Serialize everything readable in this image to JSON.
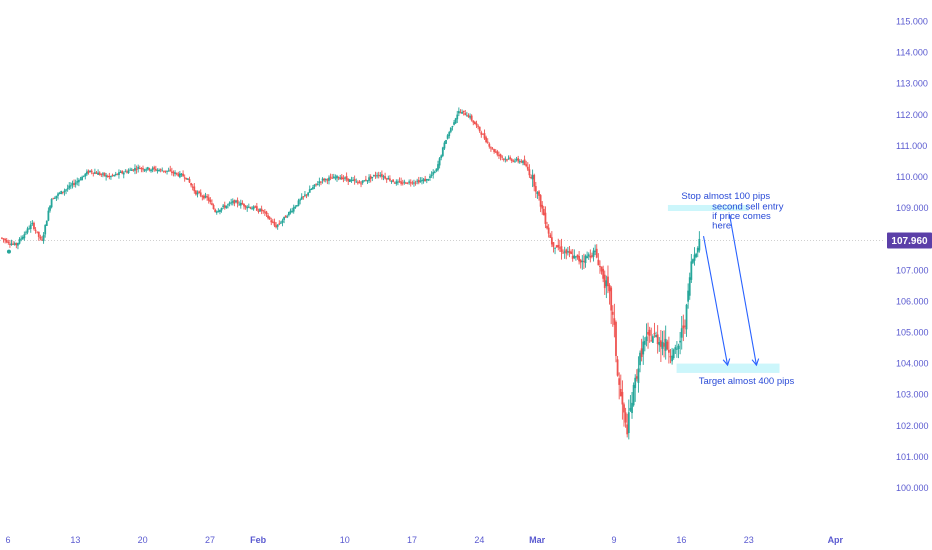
{
  "chart_data": {
    "type": "candlestick",
    "title": "",
    "current_price": {
      "value": 107.96,
      "label": "107.960"
    },
    "ylim": [
      99.4,
      115.8
    ],
    "y_ticks": [
      "100.000",
      "101.000",
      "102.000",
      "103.000",
      "104.000",
      "105.000",
      "106.000",
      "107.000",
      "108.000",
      "109.000",
      "110.000",
      "111.000",
      "112.000",
      "113.000",
      "114.000",
      "115.000"
    ],
    "x_ticks": [
      {
        "label": "6",
        "day": 0,
        "bold": false
      },
      {
        "label": "13",
        "day": 7,
        "bold": false
      },
      {
        "label": "20",
        "day": 14,
        "bold": false
      },
      {
        "label": "27",
        "day": 21,
        "bold": false
      },
      {
        "label": "Feb",
        "day": 26,
        "bold": true
      },
      {
        "label": "10",
        "day": 35,
        "bold": false
      },
      {
        "label": "17",
        "day": 42,
        "bold": false
      },
      {
        "label": "24",
        "day": 49,
        "bold": false
      },
      {
        "label": "Mar",
        "day": 55,
        "bold": true
      },
      {
        "label": "9",
        "day": 63,
        "bold": false
      },
      {
        "label": "16",
        "day": 70,
        "bold": false
      },
      {
        "label": "23",
        "day": 77,
        "bold": false
      },
      {
        "label": "Apr",
        "day": 86,
        "bold": true
      }
    ],
    "x_domain_days": [
      -0.8,
      95
    ],
    "bars_per_day": 6,
    "up_color": "#26a69a",
    "down_color": "#ef5350",
    "close_path": [
      [
        -0.8,
        108.05
      ],
      [
        0.8,
        107.8
      ],
      [
        2.5,
        108.5
      ],
      [
        3.5,
        107.9
      ],
      [
        4.5,
        109.3
      ],
      [
        6.5,
        109.7
      ],
      [
        8.5,
        110.2
      ],
      [
        10.5,
        110.0
      ],
      [
        13.5,
        110.3
      ],
      [
        16.5,
        110.2
      ],
      [
        18.5,
        110.0
      ],
      [
        19.5,
        109.5
      ],
      [
        20.8,
        109.3
      ],
      [
        21.5,
        108.9
      ],
      [
        23.5,
        109.2
      ],
      [
        26.5,
        108.9
      ],
      [
        27.8,
        108.4
      ],
      [
        28.5,
        108.6
      ],
      [
        30.5,
        109.3
      ],
      [
        32.5,
        109.9
      ],
      [
        34.5,
        110.0
      ],
      [
        36.5,
        109.8
      ],
      [
        38.5,
        110.1
      ],
      [
        40.5,
        109.8
      ],
      [
        43.5,
        109.9
      ],
      [
        44.5,
        110.2
      ],
      [
        45.5,
        111.2
      ],
      [
        46.8,
        112.1
      ],
      [
        47.8,
        112.0
      ],
      [
        48.8,
        111.6
      ],
      [
        50.3,
        110.9
      ],
      [
        51.5,
        110.6
      ],
      [
        53.5,
        110.5
      ],
      [
        54.5,
        110.0
      ],
      [
        55.5,
        109.0
      ],
      [
        56.5,
        107.9
      ],
      [
        57.8,
        107.6
      ],
      [
        59.5,
        107.3
      ],
      [
        61.0,
        107.6
      ],
      [
        62.5,
        106.2
      ],
      [
        63.0,
        105.2
      ],
      [
        63.4,
        103.5
      ],
      [
        64.3,
        101.8
      ],
      [
        65.3,
        103.6
      ],
      [
        66.0,
        104.6
      ],
      [
        67.0,
        104.9
      ],
      [
        68.0,
        104.7
      ],
      [
        69.0,
        104.4
      ],
      [
        69.5,
        104.3
      ],
      [
        70.5,
        105.6
      ],
      [
        71.0,
        107.2
      ],
      [
        71.6,
        107.7
      ],
      [
        71.9,
        108.0
      ]
    ],
    "annotations": {
      "stop_label": "Stop almost 100 pips",
      "second_entry_line1": "second sell entry",
      "second_entry_line2": "if price comes",
      "second_entry_line3": "here",
      "target_label": "Target almost 400 pips",
      "stop_zone": {
        "y_top": 109.1,
        "y_bottom": 108.95,
        "day_start": 68.6,
        "day_end": 77.0
      },
      "target_zone": {
        "y_top": 104.0,
        "y_bottom": 103.7,
        "day_start": 69.5,
        "day_end": 80.2
      },
      "arrows": [
        {
          "from_day": 72.3,
          "from_y": 108.1,
          "to_day": 74.8,
          "to_y": 103.95
        },
        {
          "from_day": 75.0,
          "from_y": 108.8,
          "to_day": 77.8,
          "to_y": 103.95
        }
      ],
      "zone_color": "#ccf6fb",
      "annotation_color": "#2962ff"
    },
    "grid": false,
    "price_line_color": "#d0d0d0",
    "price_tag_color": "#5b3fa8"
  }
}
